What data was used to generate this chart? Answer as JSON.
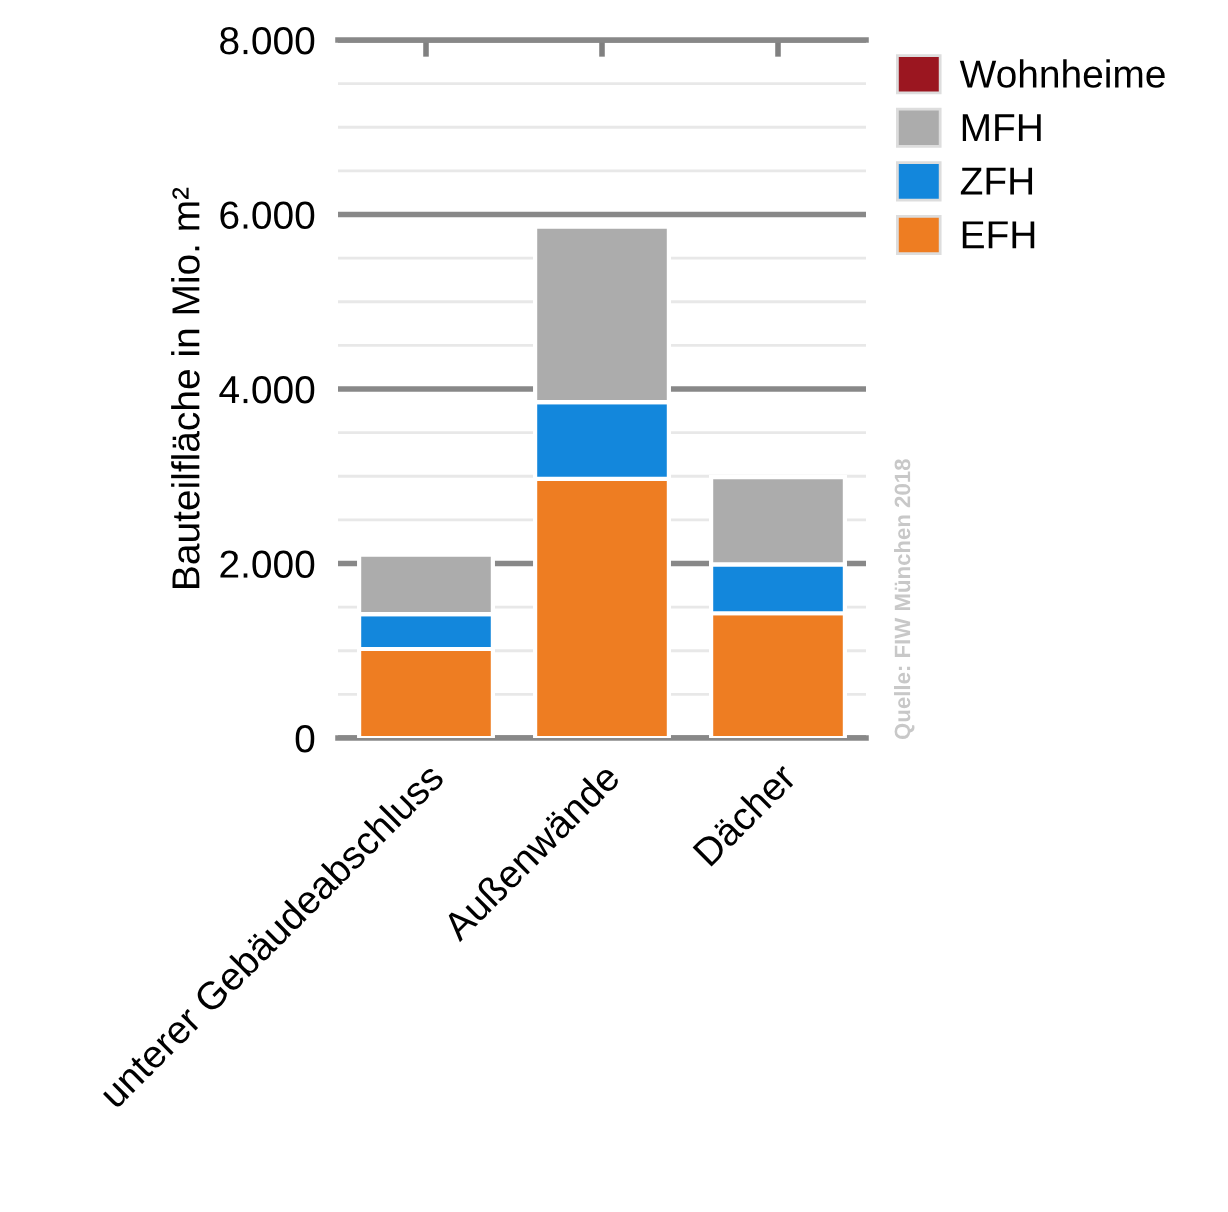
{
  "chart_data": {
    "type": "bar",
    "stacked": true,
    "categories": [
      "unterer Gebäudeabschluss",
      "Außenwände",
      "Dächer"
    ],
    "ylabel": "Bauteilfläche in Mio. m²",
    "series": [
      {
        "name": "EFH",
        "color": "#ee7d22",
        "values": [
          1020,
          2970,
          1430
        ]
      },
      {
        "name": "ZFH",
        "color": "#1387dc",
        "values": [
          400,
          880,
          560
        ]
      },
      {
        "name": "MFH",
        "color": "#acacac",
        "values": [
          680,
          2010,
          1000
        ]
      },
      {
        "name": "Wohnheime",
        "color": "#9b1620",
        "values": [
          0,
          0,
          0
        ]
      }
    ],
    "ylim": [
      0,
      8000
    ],
    "yticks": [
      {
        "value": 0,
        "label": "0"
      },
      {
        "value": 500,
        "label": null
      },
      {
        "value": 1000,
        "label": null
      },
      {
        "value": 1500,
        "label": null
      },
      {
        "value": 2000,
        "label": "2.000"
      },
      {
        "value": 2500,
        "label": null
      },
      {
        "value": 3000,
        "label": null
      },
      {
        "value": 3500,
        "label": null
      },
      {
        "value": 4000,
        "label": "4.000"
      },
      {
        "value": 4500,
        "label": null
      },
      {
        "value": 5000,
        "label": null
      },
      {
        "value": 5500,
        "label": null
      },
      {
        "value": 6000,
        "label": "6.000"
      },
      {
        "value": 6500,
        "label": null
      },
      {
        "value": 7000,
        "label": null
      },
      {
        "value": 7500,
        "label": null
      },
      {
        "value": 8000,
        "label": "8.000"
      }
    ],
    "grid": "y",
    "legend": "top right",
    "annotations": [
      "Quelle: FIW München 2018"
    ]
  }
}
